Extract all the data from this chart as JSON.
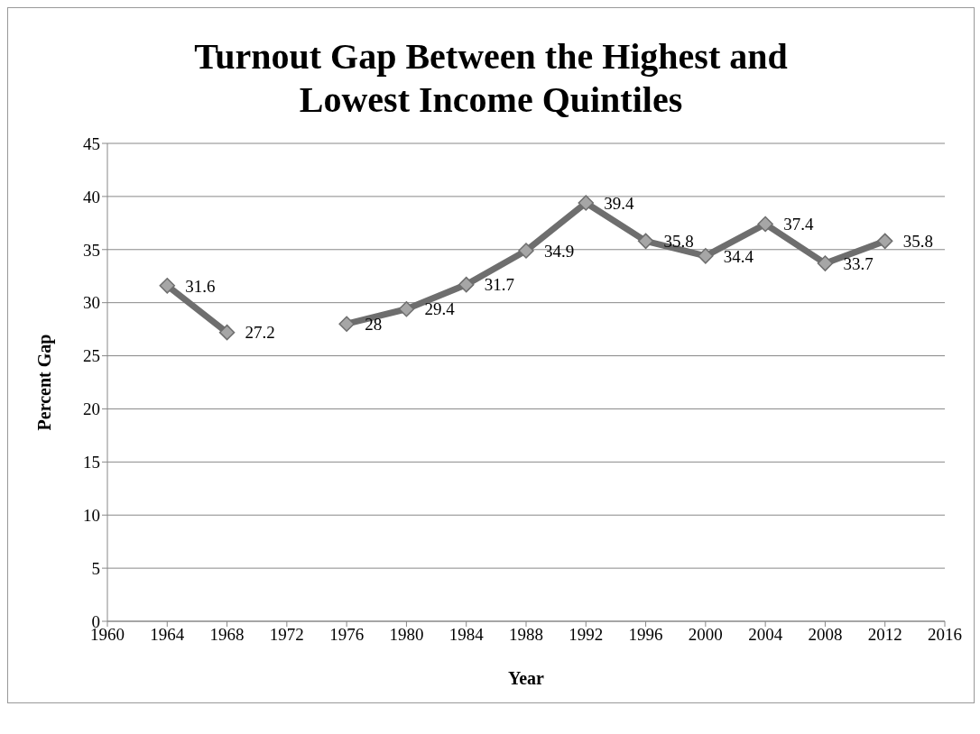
{
  "chart_data": {
    "type": "line",
    "title": "Turnout Gap Between the Highest and Lowest Income Quintiles",
    "xlabel": "Year",
    "ylabel": "Percent Gap",
    "x": [
      1964,
      1968,
      1972,
      1976,
      1980,
      1984,
      1988,
      1992,
      1996,
      2000,
      2004,
      2008,
      2012
    ],
    "series": [
      {
        "color": "#6e6e6e",
        "values": [
          31.6,
          27.2,
          null,
          28,
          29.4,
          31.7,
          34.9,
          39.4,
          35.8,
          34.4,
          37.4,
          33.7,
          35.8
        ]
      }
    ],
    "xlim": [
      1960,
      2016
    ],
    "xticks": [
      1960,
      1964,
      1968,
      1972,
      1976,
      1980,
      1984,
      1988,
      1992,
      1996,
      2000,
      2004,
      2008,
      2012,
      2016
    ],
    "ylim": [
      0,
      45
    ],
    "yticks": [
      0,
      5,
      10,
      15,
      20,
      25,
      30,
      35,
      40,
      45
    ],
    "grid": "y",
    "legend": false,
    "marker": "diamond",
    "line_style": "solid",
    "data_labels": true
  }
}
